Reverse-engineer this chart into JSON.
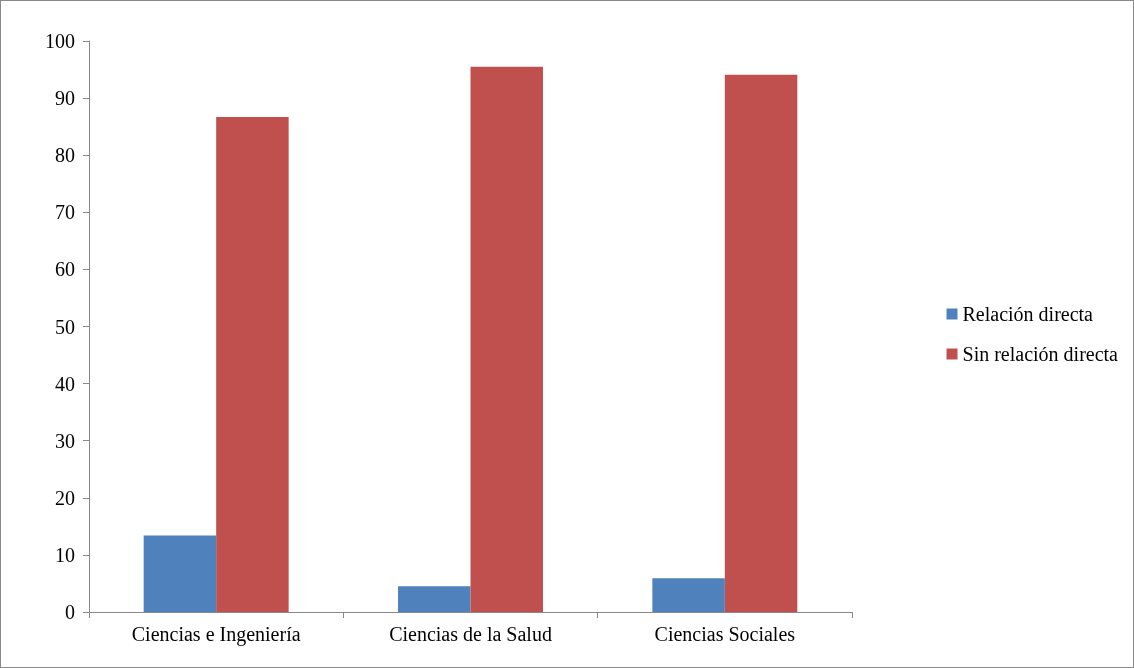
{
  "chart_data": {
    "type": "bar",
    "categories": [
      "Ciencias e Ingeniería",
      "Ciencias de la Salud",
      "Ciencias Sociales"
    ],
    "series": [
      {
        "name": "Relación directa",
        "color": "#4f81bd",
        "values": [
          13.4,
          4.5,
          5.9
        ]
      },
      {
        "name": "Sin relación directa",
        "color": "#c0504d",
        "values": [
          86.7,
          95.5,
          94.1
        ]
      }
    ],
    "ylim": [
      0,
      100
    ],
    "yticks": [
      0,
      10,
      20,
      30,
      40,
      50,
      60,
      70,
      80,
      90,
      100
    ],
    "grid": false,
    "legend": "right"
  }
}
